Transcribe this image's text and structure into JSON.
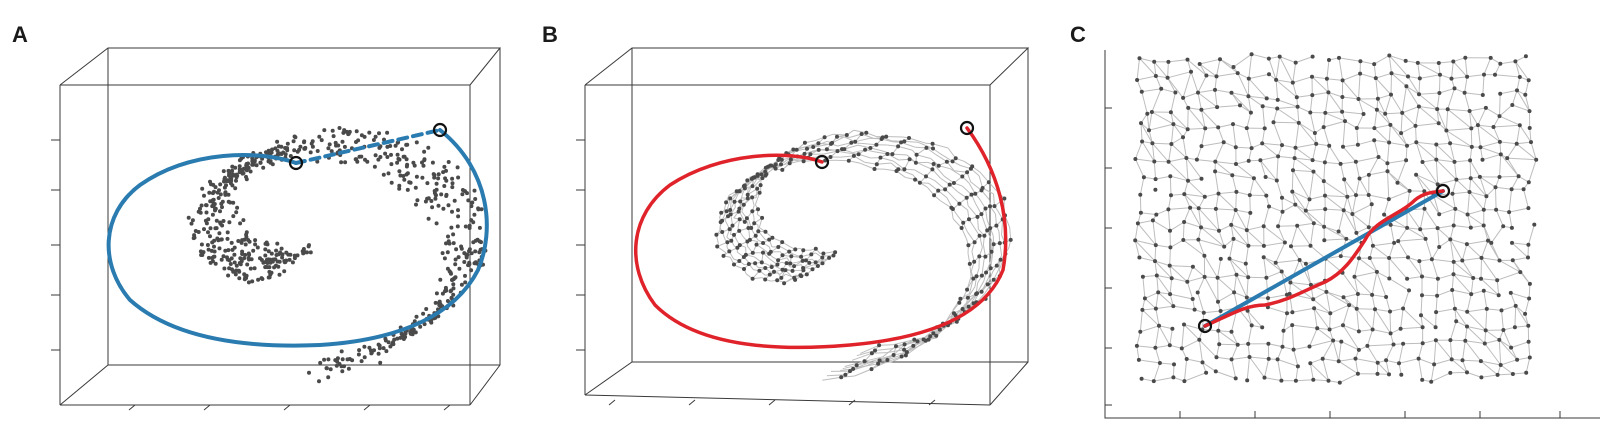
{
  "panels": [
    {
      "id": "A",
      "label": "A",
      "kind": "3D scatter of Swiss-roll data with manifold (geodesic) path and Euclidean distance"
    },
    {
      "id": "B",
      "label": "B",
      "kind": "3D neighborhood graph with shortest graph path"
    },
    {
      "id": "C",
      "label": "C",
      "kind": "2D embedding with graph path and straight-line distance"
    }
  ],
  "colors": {
    "points": "#4a4a4a",
    "graph_edges": "#bdbdbd",
    "geodesic_path": "#e0232a",
    "manifold_curve": "#2a7bb0",
    "axes": "#3a3a3a",
    "endpoints": "#111111"
  },
  "legend": []
}
